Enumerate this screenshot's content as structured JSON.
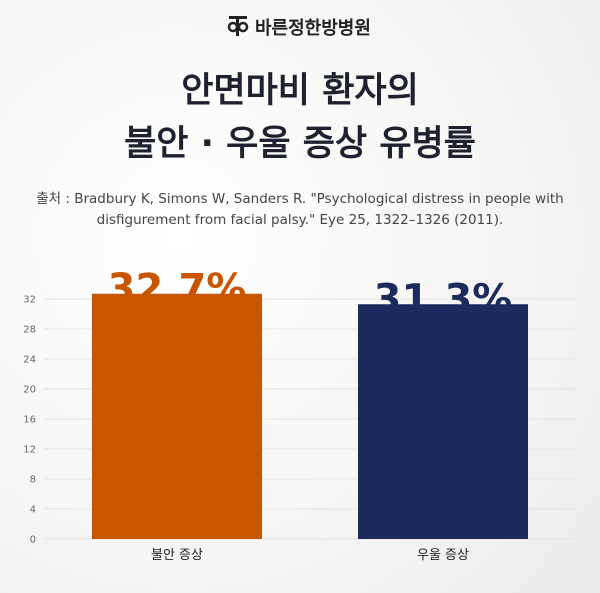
{
  "brand": "바른정한방병원",
  "chart_data": {
    "type": "bar",
    "title": [
      "안면마비 환자의",
      "불안 · 우울 증상 유병률"
    ],
    "source": [
      "출처 : Bradbury K, Simons W, Sanders R. \"Psychological distress in people with",
      "disfigurement from facial palsy.\" Eye 25, 1322–1326 (2011)."
    ],
    "categories": [
      "불안 증상",
      "우울 증상"
    ],
    "values": [
      32.7,
      31.3
    ],
    "value_labels": [
      "32.7%",
      "31.3%"
    ],
    "colors": [
      "#c85500",
      "#1c2a5c"
    ],
    "ylim": [
      0,
      32
    ],
    "yticks": [
      0,
      4,
      8,
      12,
      16,
      20,
      24,
      28,
      32
    ],
    "grid": true
  }
}
